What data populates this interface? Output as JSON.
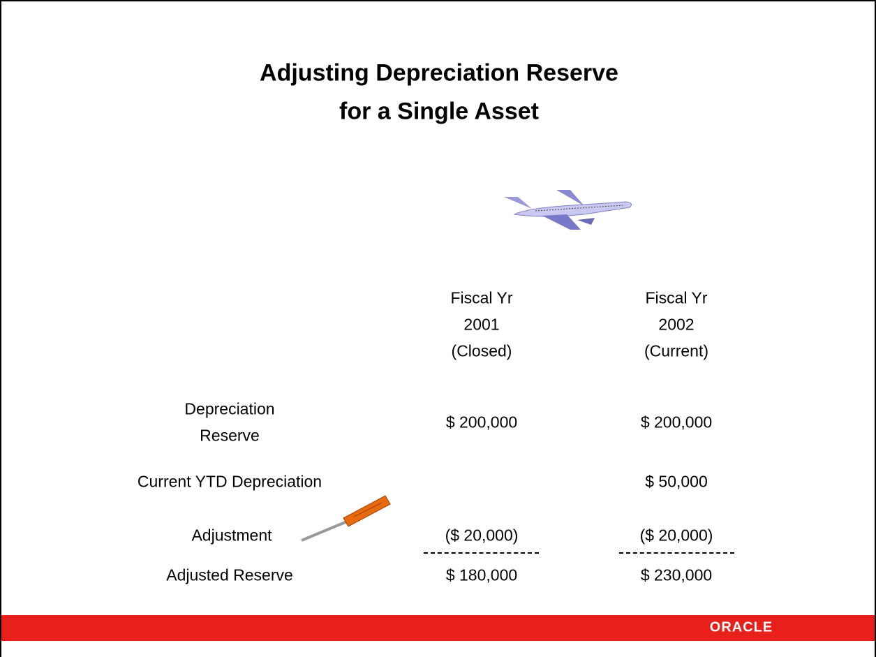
{
  "slide": {
    "title": [
      "Adjusting Depreciation Reserve",
      "for a Single Asset"
    ],
    "table": {
      "columns": [
        [
          "Fiscal Yr",
          "2001",
          "(Closed)"
        ],
        [
          "Fiscal Yr",
          "2002",
          "(Current)"
        ]
      ],
      "rows": [
        {
          "label": [
            "Depreciation",
            "Reserve"
          ],
          "values": [
            "$ 200,000",
            "$ 200,000"
          ]
        },
        {
          "label": [
            "Current YTD Depreciation"
          ],
          "values": [
            null,
            "$ 50,000"
          ]
        },
        {
          "label": [
            "Adjustment"
          ],
          "values": [
            "($ 20,000)",
            "($ 20,000)"
          ]
        },
        {
          "label": [
            "Adjusted Reserve"
          ],
          "values": [
            "$ 180,000",
            "$ 230,000"
          ]
        }
      ]
    },
    "footer": {
      "logo": "ORACLE"
    }
  }
}
